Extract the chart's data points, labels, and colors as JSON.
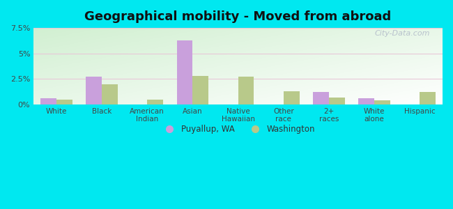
{
  "title": "Geographical mobility - Moved from abroad",
  "categories": [
    "White",
    "Black",
    "American\nIndian",
    "Asian",
    "Native\nHawaiian",
    "Other\nrace",
    "2+\nraces",
    "White\nalone",
    "Hispanic"
  ],
  "puyallup": [
    0.6,
    2.7,
    0.0,
    6.3,
    0.0,
    0.0,
    1.2,
    0.6,
    0.0
  ],
  "washington": [
    0.5,
    2.0,
    0.5,
    2.8,
    2.7,
    1.3,
    0.7,
    0.4,
    1.2
  ],
  "puyallup_color": "#c9a0dc",
  "washington_color": "#b8c98a",
  "ylim": [
    0,
    7.5
  ],
  "yticks": [
    0,
    2.5,
    5.0,
    7.5
  ],
  "ytick_labels": [
    "0%",
    "2.5%",
    "5%",
    "7.5%"
  ],
  "bar_width": 0.35,
  "outer_bg": "#00e8f0",
  "watermark": "City-Data.com",
  "legend_puyallup": "Puyallup, WA",
  "legend_washington": "Washington",
  "bg_colors": [
    "#c8e8c0",
    "#e8f5e0",
    "#f0faf0",
    "#ffffff"
  ],
  "grid_color": "#e8c8d8",
  "title_fontsize": 13,
  "tick_fontsize": 7.5
}
